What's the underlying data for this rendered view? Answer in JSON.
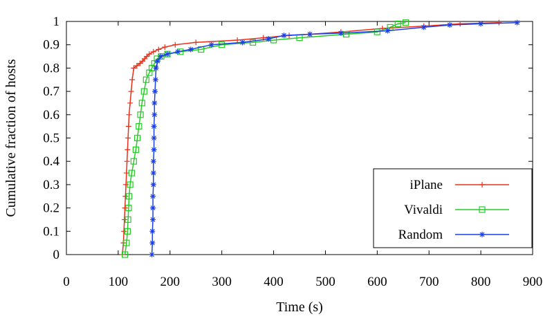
{
  "chart_data": {
    "type": "line",
    "title": "",
    "xlabel": "Time (s)",
    "ylabel": "Cumulative fraction of hosts",
    "xlim": [
      0,
      900
    ],
    "ylim": [
      0,
      1
    ],
    "x_ticks": [
      "0",
      "100",
      "200",
      "300",
      "400",
      "500",
      "600",
      "700",
      "800",
      "900"
    ],
    "y_ticks": [
      "0",
      "0.1",
      "0.2",
      "0.3",
      "0.4",
      "0.5",
      "0.6",
      "0.7",
      "0.8",
      "0.9",
      "1"
    ],
    "grid": false,
    "legend_position": "bottom-right",
    "series": [
      {
        "name": "iPlane",
        "color": "#e8301a",
        "marker": "plus",
        "points": [
          [
            108,
            0
          ],
          [
            110,
            0.05
          ],
          [
            111,
            0.1
          ],
          [
            112,
            0.15
          ],
          [
            113,
            0.2
          ],
          [
            114,
            0.25
          ],
          [
            115,
            0.3
          ],
          [
            116,
            0.35
          ],
          [
            117,
            0.4
          ],
          [
            118,
            0.45
          ],
          [
            119,
            0.5
          ],
          [
            120,
            0.55
          ],
          [
            121,
            0.6
          ],
          [
            123,
            0.65
          ],
          [
            125,
            0.7
          ],
          [
            127,
            0.75
          ],
          [
            130,
            0.8
          ],
          [
            136,
            0.81
          ],
          [
            142,
            0.82
          ],
          [
            147,
            0.83
          ],
          [
            151,
            0.84
          ],
          [
            155,
            0.85
          ],
          [
            160,
            0.86
          ],
          [
            168,
            0.87
          ],
          [
            178,
            0.88
          ],
          [
            190,
            0.89
          ],
          [
            210,
            0.9
          ],
          [
            250,
            0.91
          ],
          [
            330,
            0.92
          ],
          [
            380,
            0.93
          ],
          [
            430,
            0.94
          ],
          [
            470,
            0.945
          ],
          [
            530,
            0.955
          ],
          [
            610,
            0.97
          ],
          [
            690,
            0.98
          ],
          [
            760,
            0.99
          ],
          [
            835,
            0.995
          ]
        ]
      },
      {
        "name": "Vivaldi",
        "color": "#22cc22",
        "marker": "square",
        "points": [
          [
            113,
            0
          ],
          [
            116,
            0.05
          ],
          [
            118,
            0.1
          ],
          [
            119,
            0.15
          ],
          [
            120,
            0.2
          ],
          [
            121,
            0.25
          ],
          [
            123,
            0.3
          ],
          [
            126,
            0.35
          ],
          [
            130,
            0.4
          ],
          [
            134,
            0.45
          ],
          [
            137,
            0.5
          ],
          [
            140,
            0.55
          ],
          [
            143,
            0.6
          ],
          [
            146,
            0.65
          ],
          [
            150,
            0.7
          ],
          [
            154,
            0.75
          ],
          [
            160,
            0.78
          ],
          [
            165,
            0.8
          ],
          [
            170,
            0.82
          ],
          [
            175,
            0.84
          ],
          [
            183,
            0.85
          ],
          [
            195,
            0.86
          ],
          [
            220,
            0.87
          ],
          [
            260,
            0.88
          ],
          [
            300,
            0.9
          ],
          [
            360,
            0.91
          ],
          [
            400,
            0.92
          ],
          [
            450,
            0.93
          ],
          [
            540,
            0.945
          ],
          [
            600,
            0.955
          ],
          [
            625,
            0.975
          ],
          [
            640,
            0.99
          ],
          [
            655,
            0.995
          ]
        ]
      },
      {
        "name": "Random",
        "color": "#1a3ee8",
        "marker": "star",
        "points": [
          [
            165,
            0
          ],
          [
            166,
            0.05
          ],
          [
            166,
            0.1
          ],
          [
            167,
            0.15
          ],
          [
            167,
            0.2
          ],
          [
            167,
            0.25
          ],
          [
            168,
            0.3
          ],
          [
            168,
            0.35
          ],
          [
            168,
            0.4
          ],
          [
            169,
            0.45
          ],
          [
            169,
            0.5
          ],
          [
            169,
            0.55
          ],
          [
            170,
            0.6
          ],
          [
            170,
            0.65
          ],
          [
            171,
            0.7
          ],
          [
            172,
            0.75
          ],
          [
            173,
            0.8
          ],
          [
            176,
            0.83
          ],
          [
            182,
            0.85
          ],
          [
            195,
            0.86
          ],
          [
            215,
            0.87
          ],
          [
            240,
            0.88
          ],
          [
            280,
            0.9
          ],
          [
            340,
            0.91
          ],
          [
            390,
            0.925
          ],
          [
            420,
            0.94
          ],
          [
            470,
            0.945
          ],
          [
            530,
            0.95
          ],
          [
            620,
            0.96
          ],
          [
            690,
            0.975
          ],
          [
            740,
            0.985
          ],
          [
            800,
            0.99
          ],
          [
            870,
            0.995
          ]
        ]
      }
    ]
  }
}
